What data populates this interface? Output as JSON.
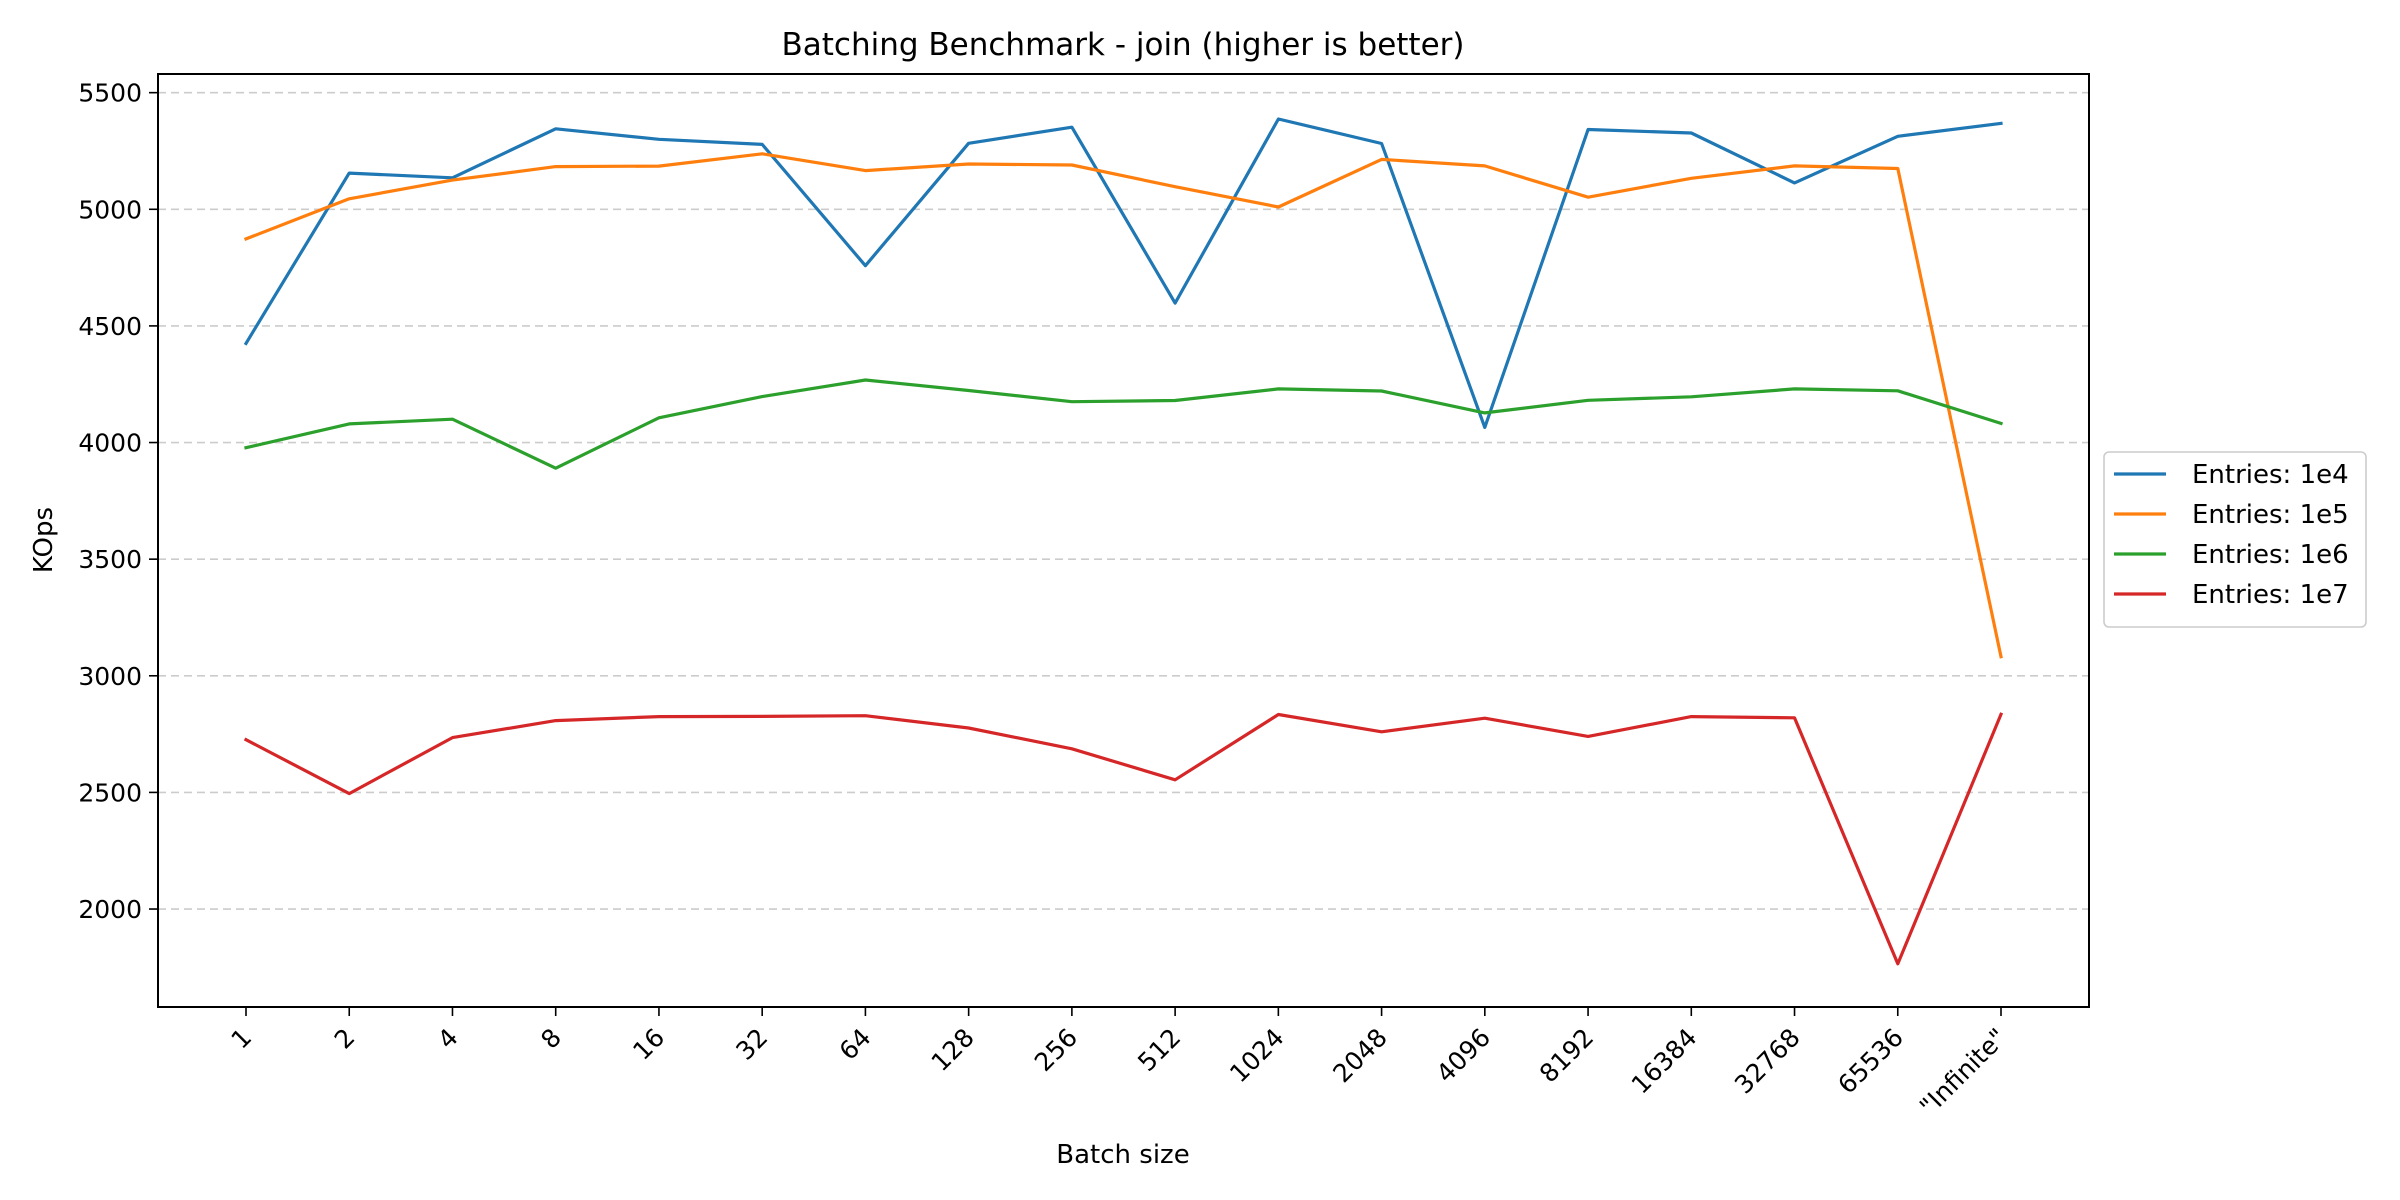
{
  "chart_data": {
    "type": "line",
    "title": "Batching Benchmark - join (higher is better)",
    "xlabel": "Batch size",
    "ylabel": "KOps",
    "categories": [
      "1",
      "2",
      "4",
      "8",
      "16",
      "32",
      "64",
      "128",
      "256",
      "512",
      "1024",
      "2048",
      "4096",
      "8192",
      "16384",
      "32768",
      "65536",
      "\"Infinite\""
    ],
    "ylim": [
      1580,
      5580
    ],
    "yticks": [
      2000,
      2500,
      3000,
      3500,
      4000,
      4500,
      5000,
      5500
    ],
    "grid": "y-dashed",
    "legend_position": "right-outside",
    "series": [
      {
        "name": "Entries: 1e4",
        "color": "#1f77b4",
        "values": [
          4425,
          5155,
          5135,
          5345,
          5300,
          5278,
          4758,
          5283,
          5352,
          4598,
          5387,
          5282,
          4065,
          5342,
          5327,
          5113,
          5313,
          5368
        ]
      },
      {
        "name": "Entries: 1e5",
        "color": "#ff7f0e",
        "values": [
          4873,
          5045,
          5125,
          5183,
          5185,
          5238,
          5166,
          5194,
          5190,
          5097,
          5010,
          5214,
          5186,
          5052,
          5133,
          5186,
          5175,
          3082
        ]
      },
      {
        "name": "Entries: 1e6",
        "color": "#2ca02c",
        "values": [
          3978,
          4080,
          4100,
          3890,
          4106,
          4197,
          4268,
          4223,
          4175,
          4180,
          4230,
          4221,
          4127,
          4181,
          4196,
          4230,
          4222,
          4082
        ]
      },
      {
        "name": "Entries: 1e7",
        "color": "#d62728",
        "values": [
          2726,
          2495,
          2735,
          2808,
          2825,
          2826,
          2829,
          2776,
          2687,
          2554,
          2834,
          2760,
          2818,
          2740,
          2825,
          2820,
          1765,
          2835
        ]
      }
    ]
  }
}
